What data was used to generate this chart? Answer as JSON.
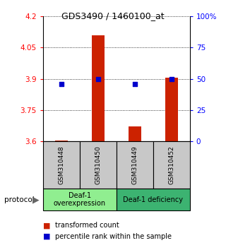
{
  "title": "GDS3490 / 1460100_at",
  "samples": [
    "GSM310448",
    "GSM310450",
    "GSM310449",
    "GSM310452"
  ],
  "red_values": [
    3.603,
    4.11,
    3.67,
    3.905
  ],
  "blue_values": [
    46,
    50,
    46,
    50
  ],
  "ylim_left": [
    3.6,
    4.2
  ],
  "ylim_right": [
    0,
    100
  ],
  "yticks_left": [
    3.6,
    3.75,
    3.9,
    4.05,
    4.2
  ],
  "ytick_labels_left": [
    "3.6",
    "3.75",
    "3.9",
    "4.05",
    "4.2"
  ],
  "yticks_right": [
    0,
    25,
    50,
    75,
    100
  ],
  "ytick_labels_right": [
    "0",
    "25",
    "50",
    "75",
    "100%"
  ],
  "groups": [
    {
      "label": "Deaf-1\noverexpression",
      "samples": [
        0,
        1
      ],
      "color": "#90EE90"
    },
    {
      "label": "Deaf-1 deficiency",
      "samples": [
        2,
        3
      ],
      "color": "#3CB371"
    }
  ],
  "red_color": "#CC2200",
  "blue_color": "#0000CC",
  "bar_bottom": 3.6,
  "legend_red": "transformed count",
  "legend_blue": "percentile rank within the sample",
  "protocol_label": "protocol",
  "sample_bg_color": "#C8C8C8",
  "bar_width": 0.35
}
